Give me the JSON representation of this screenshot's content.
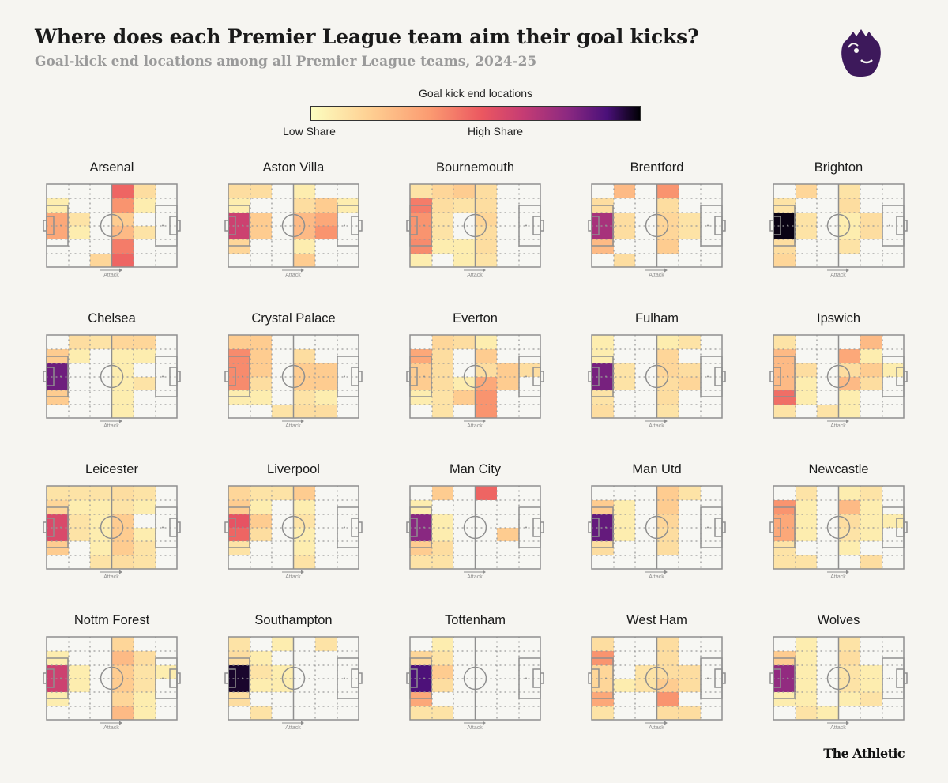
{
  "header": {
    "title": "Where does each Premier League team aim their goal kicks?",
    "subtitle": "Goal-kick end locations among all Premier League teams, 2024-25"
  },
  "legend": {
    "title": "Goal kick end locations",
    "low_label": "Low Share",
    "high_label": "High Share"
  },
  "pitch": {
    "attack_label": "Attack"
  },
  "footer": {
    "brand": "The Athletic"
  },
  "colors": {
    "background": "#f6f5f1",
    "pitch_fill": "#f7f7f3",
    "pitch_lines": "#8f8f8f",
    "colorscale": [
      "#fcfdbf",
      "#fecf92",
      "#fb9b71",
      "#eb5760",
      "#c73d73",
      "#8c2981",
      "#4a1079",
      "#000004"
    ],
    "logo": "#3d195b"
  },
  "chart_data": {
    "type": "heatmap",
    "description_grid": "each team: 6 rows (top to bottom) x 6 columns (own goal to opponent goal), share level 0-1",
    "teams": [
      {
        "name": "Arsenal",
        "grid": [
          [
            0,
            0,
            0,
            0.4,
            0.1,
            0
          ],
          [
            0.05,
            0,
            0,
            0.3,
            0.05,
            0
          ],
          [
            0.25,
            0.08,
            0,
            0.15,
            0,
            0
          ],
          [
            0.25,
            0.05,
            0,
            0.2,
            0.08,
            0
          ],
          [
            0,
            0,
            0,
            0.35,
            0,
            0
          ],
          [
            0,
            0,
            0.12,
            0.4,
            0,
            0
          ]
        ]
      },
      {
        "name": "Aston Villa",
        "grid": [
          [
            0.1,
            0.1,
            0,
            0.05,
            0,
            0
          ],
          [
            0.05,
            0,
            0,
            0.1,
            0.15,
            0.05
          ],
          [
            0.55,
            0.15,
            0,
            0.2,
            0.25,
            0
          ],
          [
            0.55,
            0.15,
            0,
            0.2,
            0.3,
            0
          ],
          [
            0.12,
            0,
            0,
            0.05,
            0,
            0
          ],
          [
            0,
            0,
            0,
            0.15,
            0,
            0
          ]
        ]
      },
      {
        "name": "Bournemouth",
        "grid": [
          [
            0.08,
            0.12,
            0.15,
            0.1,
            0,
            0
          ],
          [
            0.35,
            0.1,
            0.08,
            0.1,
            0,
            0
          ],
          [
            0.3,
            0.08,
            0,
            0.12,
            0,
            0
          ],
          [
            0.3,
            0.08,
            0,
            0.1,
            0,
            0
          ],
          [
            0.32,
            0.05,
            0.05,
            0.1,
            0,
            0
          ],
          [
            0.05,
            0,
            0.05,
            0.08,
            0,
            0
          ]
        ]
      },
      {
        "name": "Brentford",
        "grid": [
          [
            0,
            0.2,
            0,
            0.3,
            0,
            0
          ],
          [
            0.1,
            0,
            0,
            0.1,
            0,
            0
          ],
          [
            0.65,
            0.1,
            0,
            0.12,
            0.08,
            0
          ],
          [
            0.65,
            0.1,
            0,
            0.12,
            0.08,
            0
          ],
          [
            0.2,
            0,
            0,
            0.15,
            0,
            0
          ],
          [
            0,
            0.1,
            0,
            0,
            0,
            0
          ]
        ]
      },
      {
        "name": "Brighton",
        "grid": [
          [
            0,
            0.12,
            0,
            0.08,
            0,
            0
          ],
          [
            0.08,
            0,
            0,
            0.1,
            0,
            0
          ],
          [
            0.98,
            0.08,
            0,
            0.05,
            0.1,
            0
          ],
          [
            0.98,
            0.08,
            0,
            0.05,
            0.1,
            0
          ],
          [
            0.1,
            0,
            0,
            0.08,
            0,
            0
          ],
          [
            0.12,
            0,
            0,
            0,
            0,
            0
          ]
        ]
      },
      {
        "name": "Chelsea",
        "grid": [
          [
            0,
            0.1,
            0.08,
            0.12,
            0.12,
            0
          ],
          [
            0.15,
            0.05,
            0,
            0.05,
            0.05,
            0
          ],
          [
            0.78,
            0,
            0,
            0.05,
            0,
            0
          ],
          [
            0.78,
            0,
            0,
            0.05,
            0.08,
            0
          ],
          [
            0.15,
            0,
            0,
            0.05,
            0,
            0
          ],
          [
            0,
            0,
            0,
            0.05,
            0,
            0
          ]
        ]
      },
      {
        "name": "Crystal Palace",
        "grid": [
          [
            0.15,
            0.15,
            0,
            0,
            0,
            0
          ],
          [
            0.32,
            0.15,
            0,
            0.1,
            0,
            0
          ],
          [
            0.32,
            0.15,
            0,
            0.15,
            0.15,
            0
          ],
          [
            0.32,
            0.1,
            0,
            0.15,
            0.15,
            0
          ],
          [
            0.05,
            0.05,
            0,
            0.08,
            0.05,
            0
          ],
          [
            0,
            0,
            0.08,
            0.1,
            0.1,
            0
          ]
        ]
      },
      {
        "name": "Everton",
        "grid": [
          [
            0,
            0.12,
            0.1,
            0.05,
            0,
            0
          ],
          [
            0.25,
            0.1,
            0,
            0.15,
            0,
            0
          ],
          [
            0.15,
            0.1,
            0,
            0.1,
            0.15,
            0.1
          ],
          [
            0.15,
            0.1,
            0.05,
            0.25,
            0.15,
            0
          ],
          [
            0.05,
            0.08,
            0.15,
            0.3,
            0,
            0
          ],
          [
            0,
            0.08,
            0,
            0.3,
            0,
            0
          ]
        ]
      },
      {
        "name": "Fulham",
        "grid": [
          [
            0.05,
            0,
            0,
            0.05,
            0.08,
            0
          ],
          [
            0.05,
            0,
            0,
            0.12,
            0,
            0
          ],
          [
            0.76,
            0.08,
            0,
            0.12,
            0.1,
            0
          ],
          [
            0.76,
            0.08,
            0,
            0.1,
            0.12,
            0
          ],
          [
            0.08,
            0,
            0,
            0.1,
            0,
            0
          ],
          [
            0.1,
            0,
            0,
            0.08,
            0,
            0
          ]
        ]
      },
      {
        "name": "Ipswich",
        "grid": [
          [
            0.08,
            0,
            0,
            0,
            0.2,
            0
          ],
          [
            0.2,
            0,
            0,
            0.25,
            0.05,
            0
          ],
          [
            0.2,
            0.1,
            0,
            0.1,
            0.15,
            0.05
          ],
          [
            0.2,
            0.05,
            0,
            0.2,
            0.1,
            0
          ],
          [
            0.38,
            0.05,
            0,
            0.05,
            0,
            0
          ],
          [
            0.08,
            0,
            0.08,
            0.05,
            0,
            0
          ]
        ]
      },
      {
        "name": "Leicester",
        "grid": [
          [
            0.08,
            0.08,
            0.08,
            0.1,
            0.08,
            0
          ],
          [
            0.12,
            0.05,
            0.05,
            0.08,
            0.05,
            0
          ],
          [
            0.5,
            0.08,
            0.05,
            0.15,
            0,
            0
          ],
          [
            0.5,
            0.08,
            0.05,
            0.15,
            0.05,
            0
          ],
          [
            0.15,
            0,
            0.05,
            0.15,
            0.08,
            0
          ],
          [
            0,
            0,
            0.08,
            0.1,
            0.08,
            0
          ]
        ]
      },
      {
        "name": "Liverpool",
        "grid": [
          [
            0.12,
            0.08,
            0.08,
            0.15,
            0,
            0
          ],
          [
            0.15,
            0.05,
            0,
            0.05,
            0,
            0
          ],
          [
            0.45,
            0.15,
            0,
            0.08,
            0,
            0
          ],
          [
            0.4,
            0.1,
            0,
            0.05,
            0,
            0
          ],
          [
            0.08,
            0,
            0,
            0.05,
            0,
            0
          ],
          [
            0,
            0,
            0,
            0.08,
            0,
            0
          ]
        ]
      },
      {
        "name": "Man City",
        "grid": [
          [
            0,
            0.15,
            0,
            0.4,
            0,
            0
          ],
          [
            0.05,
            0,
            0,
            0,
            0,
            0
          ],
          [
            0.72,
            0.05,
            0,
            0,
            0,
            0
          ],
          [
            0.72,
            0.05,
            0,
            0,
            0.15,
            0
          ],
          [
            0.15,
            0.1,
            0,
            0,
            0,
            0
          ],
          [
            0.08,
            0.08,
            0,
            0,
            0,
            0
          ]
        ]
      },
      {
        "name": "Man Utd",
        "grid": [
          [
            0,
            0,
            0,
            0.15,
            0.08,
            0
          ],
          [
            0.15,
            0.05,
            0,
            0.15,
            0,
            0
          ],
          [
            0.8,
            0.05,
            0,
            0.12,
            0,
            0
          ],
          [
            0.8,
            0.05,
            0,
            0.1,
            0,
            0
          ],
          [
            0.1,
            0,
            0,
            0.1,
            0,
            0
          ],
          [
            0,
            0,
            0,
            0,
            0,
            0
          ]
        ]
      },
      {
        "name": "Newcastle",
        "grid": [
          [
            0,
            0.08,
            0,
            0.05,
            0.08,
            0
          ],
          [
            0.3,
            0.05,
            0,
            0.2,
            0.05,
            0
          ],
          [
            0.25,
            0.05,
            0,
            0.1,
            0.05,
            0.05
          ],
          [
            0.25,
            0.05,
            0,
            0.08,
            0.05,
            0
          ],
          [
            0.08,
            0,
            0,
            0.05,
            0,
            0
          ],
          [
            0.08,
            0.08,
            0,
            0,
            0.1,
            0
          ]
        ]
      },
      {
        "name": "Nottm Forest",
        "grid": [
          [
            0,
            0,
            0,
            0.12,
            0,
            0
          ],
          [
            0.05,
            0,
            0,
            0.2,
            0.1,
            0
          ],
          [
            0.55,
            0.05,
            0,
            0.15,
            0.08,
            0.05
          ],
          [
            0.55,
            0.05,
            0,
            0.15,
            0.08,
            0
          ],
          [
            0.05,
            0,
            0,
            0.12,
            0.05,
            0
          ],
          [
            0,
            0,
            0,
            0.2,
            0.05,
            0
          ]
        ]
      },
      {
        "name": "Southampton",
        "grid": [
          [
            0.08,
            0,
            0.05,
            0,
            0.08,
            0
          ],
          [
            0.1,
            0.05,
            0,
            0,
            0,
            0
          ],
          [
            0.95,
            0.08,
            0.05,
            0,
            0,
            0
          ],
          [
            0.95,
            0.05,
            0.05,
            0,
            0,
            0
          ],
          [
            0.1,
            0,
            0,
            0,
            0,
            0
          ],
          [
            0,
            0.08,
            0,
            0,
            0,
            0
          ]
        ]
      },
      {
        "name": "Tottenham",
        "grid": [
          [
            0,
            0.05,
            0,
            0,
            0,
            0
          ],
          [
            0.12,
            0.08,
            0,
            0,
            0,
            0
          ],
          [
            0.85,
            0.15,
            0,
            0,
            0,
            0
          ],
          [
            0.85,
            0.1,
            0,
            0,
            0,
            0
          ],
          [
            0.25,
            0,
            0,
            0,
            0,
            0
          ],
          [
            0.08,
            0.08,
            0,
            0,
            0,
            0
          ]
        ]
      },
      {
        "name": "West Ham",
        "grid": [
          [
            0.1,
            0,
            0,
            0.1,
            0,
            0
          ],
          [
            0.3,
            0,
            0,
            0.1,
            0,
            0
          ],
          [
            0.12,
            0,
            0.08,
            0.1,
            0.1,
            0
          ],
          [
            0.12,
            0.05,
            0.08,
            0.15,
            0.1,
            0
          ],
          [
            0.25,
            0,
            0,
            0.3,
            0,
            0
          ],
          [
            0.08,
            0,
            0,
            0.1,
            0.1,
            0
          ]
        ]
      },
      {
        "name": "Wolves",
        "grid": [
          [
            0,
            0.05,
            0,
            0.08,
            0,
            0
          ],
          [
            0.15,
            0.05,
            0,
            0.1,
            0,
            0
          ],
          [
            0.7,
            0.05,
            0,
            0.08,
            0.05,
            0
          ],
          [
            0.7,
            0.05,
            0,
            0.08,
            0.05,
            0
          ],
          [
            0.05,
            0.05,
            0,
            0.05,
            0.08,
            0
          ],
          [
            0,
            0.08,
            0.05,
            0,
            0,
            0
          ]
        ]
      }
    ]
  }
}
